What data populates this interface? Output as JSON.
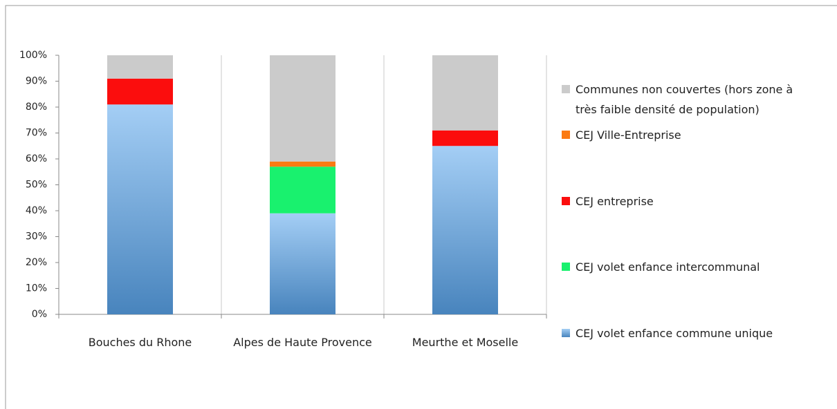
{
  "chart_data": {
    "type": "stacked_bar",
    "categories": [
      "Bouches du Rhone",
      "Alpes de Haute Provence",
      "Meurthe et Moselle"
    ],
    "series": [
      {
        "name": "CEJ volet enfance commune unique",
        "color": "#5aa5ec",
        "values": [
          81,
          39,
          65
        ]
      },
      {
        "name": "CEJ volet enfance intercommunal",
        "color": "#19f16e",
        "values": [
          0,
          18,
          0
        ]
      },
      {
        "name": "CEJ entreprise",
        "color": "#fb0d0d",
        "values": [
          10,
          0,
          6
        ]
      },
      {
        "name": "CEJ Ville-Entreprise",
        "color": "#fb7a12",
        "values": [
          0,
          2,
          0
        ]
      },
      {
        "name": "Communes non couvertes (hors zone à très faible densité de population)",
        "color": "#cbcbcb",
        "values": [
          9,
          41,
          29
        ]
      }
    ],
    "ylim": [
      0,
      100
    ],
    "yticks": [
      {
        "value": 0,
        "label": "0%"
      },
      {
        "value": 10,
        "label": "10%"
      },
      {
        "value": 20,
        "label": "20%"
      },
      {
        "value": 30,
        "label": "30%"
      },
      {
        "value": 40,
        "label": "40%"
      },
      {
        "value": 50,
        "label": "50%"
      },
      {
        "value": 60,
        "label": "60%"
      },
      {
        "value": 70,
        "label": "70%"
      },
      {
        "value": 80,
        "label": "80%"
      },
      {
        "value": 90,
        "label": "90%"
      },
      {
        "value": 100,
        "label": "100%"
      }
    ],
    "legend": "right"
  }
}
